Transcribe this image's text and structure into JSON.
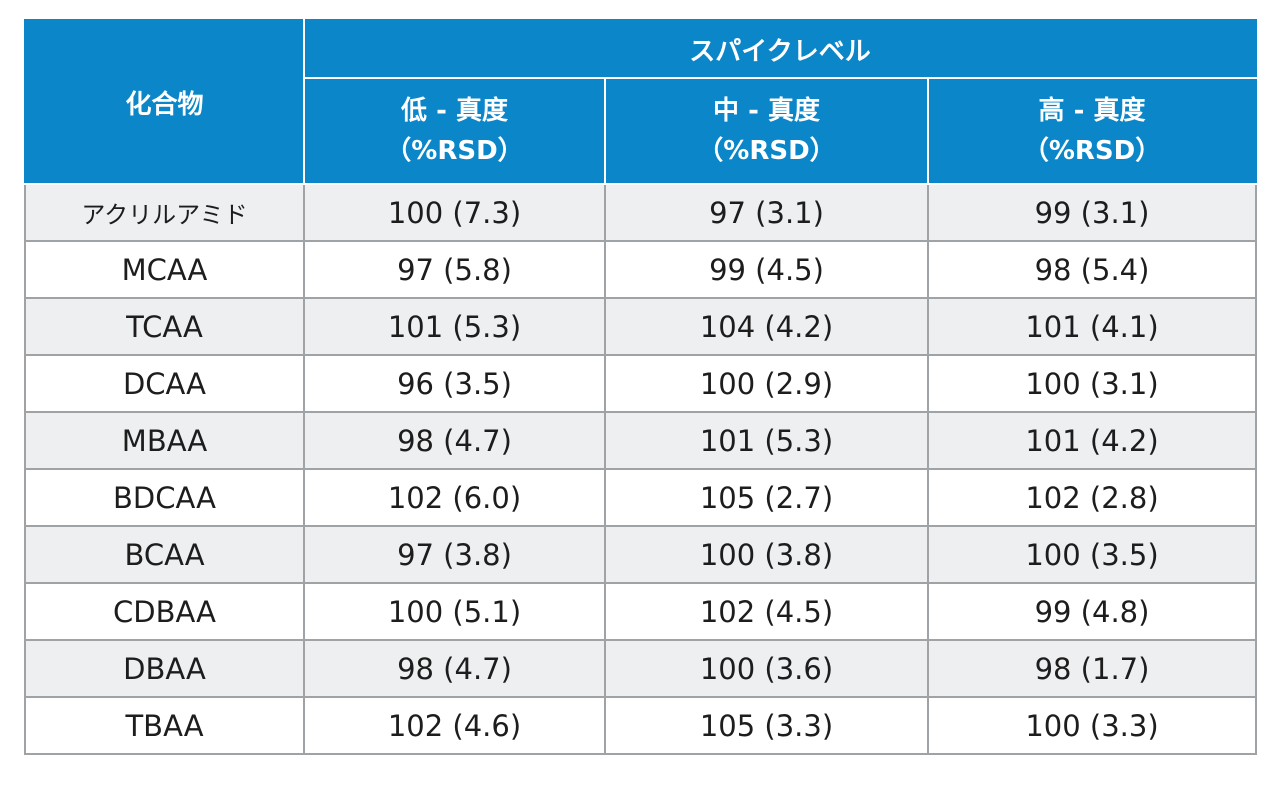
{
  "table": {
    "header": {
      "compound": "化合物",
      "group": "スパイクレベル",
      "columns": [
        {
          "line1": "低 - 真度",
          "line2": "（%RSD）"
        },
        {
          "line1": "中 - 真度",
          "line2": "（%RSD）"
        },
        {
          "line1": "高 - 真度",
          "line2": "（%RSD）"
        }
      ]
    },
    "rows": [
      {
        "name": "アクリルアミド",
        "low": "100 (7.3)",
        "mid": "97 (3.1)",
        "high": "99 (3.1)"
      },
      {
        "name": "MCAA",
        "low": "97 (5.8)",
        "mid": "99 (4.5)",
        "high": "98 (5.4)"
      },
      {
        "name": "TCAA",
        "low": "101 (5.3)",
        "mid": "104 (4.2)",
        "high": "101 (4.1)"
      },
      {
        "name": "DCAA",
        "low": "96 (3.5)",
        "mid": "100 (2.9)",
        "high": "100 (3.1)"
      },
      {
        "name": "MBAA",
        "low": "98 (4.7)",
        "mid": "101 (5.3)",
        "high": "101 (4.2)"
      },
      {
        "name": "BDCAA",
        "low": "102 (6.0)",
        "mid": "105 (2.7)",
        "high": "102 (2.8)"
      },
      {
        "name": "BCAA",
        "low": "97 (3.8)",
        "mid": "100 (3.8)",
        "high": "100 (3.5)"
      },
      {
        "name": "CDBAA",
        "low": "100 (5.1)",
        "mid": "102 (4.5)",
        "high": "99 (4.8)"
      },
      {
        "name": "DBAA",
        "low": "98 (4.7)",
        "mid": "100 (3.6)",
        "high": "98 (1.7)"
      },
      {
        "name": "TBAA",
        "low": "102 (4.6)",
        "mid": "105 (3.3)",
        "high": "100 (3.3)"
      }
    ],
    "colors": {
      "header_bg": "#0a86c9",
      "row_alt_bg": "#eeeff1",
      "grid": "#9fa3a6"
    }
  }
}
